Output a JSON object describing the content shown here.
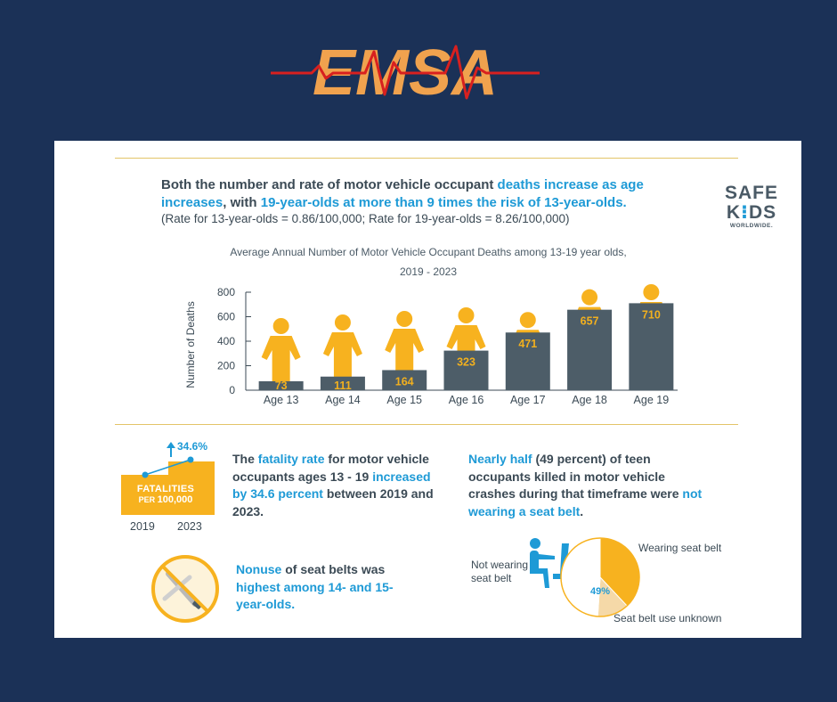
{
  "brand": {
    "logo_text": "EMSA"
  },
  "infographic": {
    "headline_part1": "Both the number and rate of motor vehicle occupant ",
    "headline_hl1": "deaths increase as age increases",
    "headline_part2": ", with ",
    "headline_hl2": "19-year-olds at more than 9 times the risk of 13-year-olds.",
    "subline": "(Rate for 13-year-olds = 0.86/100,000; Rate for 19-year-olds = 8.26/100,000)",
    "safekids_line1": "SAFE",
    "safekids_line2_a": "K",
    "safekids_line2_b": "DS",
    "safekids_line3": "WORLDWIDE."
  },
  "chart_data": {
    "type": "bar",
    "title_line1": "Average Annual Number of Motor Vehicle Occupant Deaths among 13-19 year olds,",
    "title_line2": "2019 - 2023",
    "ylabel": "Number of Deaths",
    "xlabel": "",
    "ylim": [
      0,
      800
    ],
    "yticks": [
      0,
      200,
      400,
      600,
      800
    ],
    "categories": [
      "Age 13",
      "Age 14",
      "Age 15",
      "Age 16",
      "Age 17",
      "Age 18",
      "Age 19"
    ],
    "values": [
      73,
      111,
      164,
      323,
      471,
      657,
      710
    ],
    "bar_color": "#4d5d68",
    "label_color": "#f2b01e",
    "figure_color": "#f7b21f"
  },
  "fatality": {
    "change_label": "34.6%",
    "box_line1": "FATALITIES",
    "box_per": "PER",
    "box_num": "100,000",
    "year_start": "2019",
    "year_end": "2023",
    "text_part1": "The ",
    "text_hl1": "fatality rate",
    "text_part2": " for motor vehicle occupants ages 13 - 19 ",
    "text_hl2": "increased by 34.6 percent",
    "text_part3": " between 2019 and 2023."
  },
  "nonuse": {
    "hl1": "Nonuse",
    "part1": " of seat belts was ",
    "hl2": "highest among 14- and 15-year-olds."
  },
  "seatbelt": {
    "hl1": "Nearly half",
    "part1": " (49 percent) of teen occupants killed in motor vehicle crashes during that timeframe were ",
    "hl2": "not wearing a seat belt",
    "part2": ".",
    "pie_pct": "49%",
    "not_wearing_l1": "Not wearing",
    "not_wearing_l2": "seat belt",
    "wearing": "Wearing seat belt",
    "unknown": "Seat belt use unknown",
    "not_wearing_share": 49
  },
  "colors": {
    "bg": "#1b3157",
    "accent_blue": "#1e9ad6",
    "gold": "#f7b21f",
    "logo_orange": "#f0a24e",
    "logo_red": "#d8201f"
  }
}
